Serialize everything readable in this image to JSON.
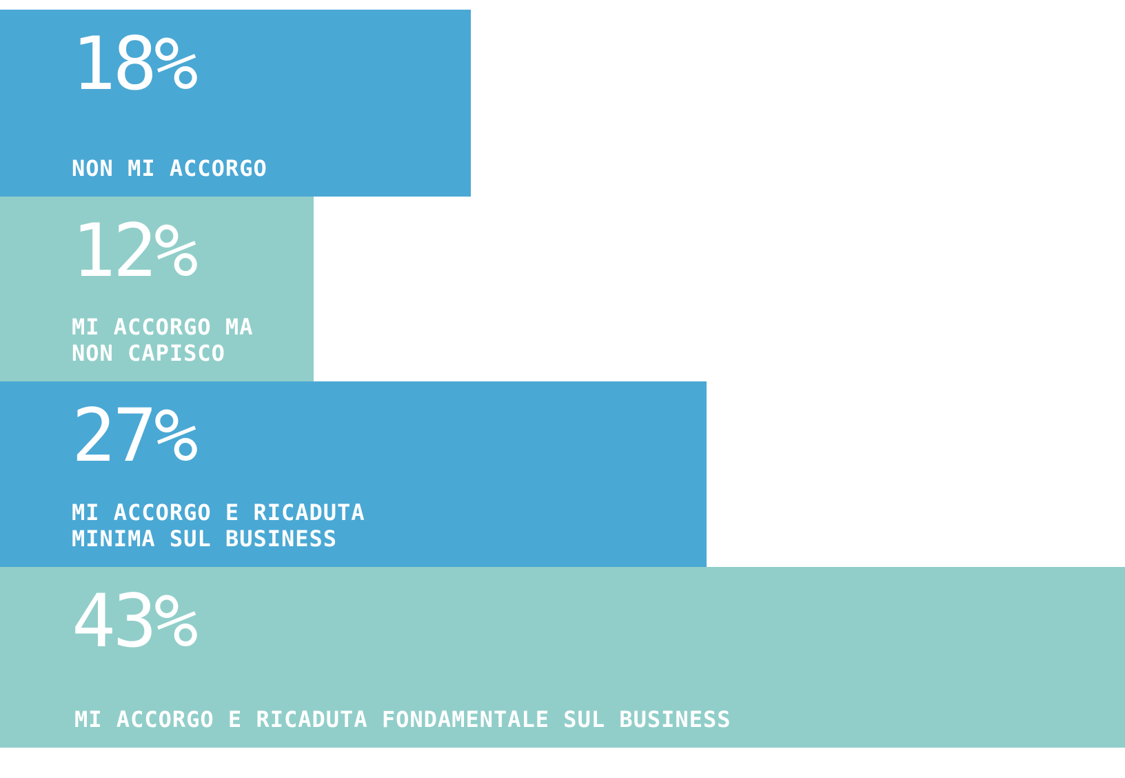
{
  "chart_data": {
    "type": "bar",
    "orientation": "horizontal",
    "categories": [
      "NON MI ACCORGO",
      "MI ACCORGO MA\nNON CAPISCO",
      "MI ACCORGO E RICADUTA\nMINIMA SUL BUSINESS",
      "MI ACCORGO E RICADUTA FONDAMENTALE SUL BUSINESS"
    ],
    "values": [
      18,
      12,
      27,
      43
    ],
    "value_labels": [
      "18%",
      "12%",
      "27%",
      "43%"
    ],
    "unit": "%",
    "colors": [
      "#4aa8d4",
      "#91cec9",
      "#4aa8d4",
      "#91cec9"
    ],
    "xlim": [
      0,
      43
    ],
    "title": "",
    "xlabel": "",
    "ylabel": "",
    "grid": false,
    "legend": "none"
  }
}
